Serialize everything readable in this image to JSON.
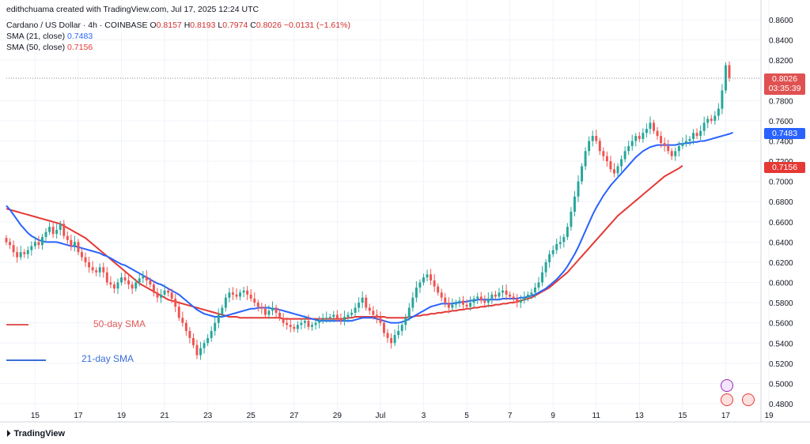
{
  "header": {
    "credit": "edithchuama created with TradingView.com, Jul 17, 2025 12:24 UTC",
    "symbol": "Cardano / US Dollar · 4h · COINBASE",
    "ohlc": {
      "o_label": "O",
      "o": "0.8157",
      "h_label": "H",
      "h": "0.8193",
      "l_label": "L",
      "l": "0.7974",
      "c_label": "C",
      "c": "0.8026",
      "change": "−0.0131 (−1.61%)"
    },
    "sma21": {
      "label": "SMA (21, close)",
      "value": "0.7483"
    },
    "sma50": {
      "label": "SMA (50, close)",
      "value": "0.7156"
    }
  },
  "annotations": {
    "sma50_label": "50-day SMA",
    "sma21_label": "21-day SMA"
  },
  "price_boxes": {
    "last": "0.8026",
    "countdown": "03:35:39",
    "sma21": "0.7483",
    "sma50": "0.7156"
  },
  "footer": {
    "brand": "TradingView"
  },
  "colors": {
    "up": "#26a69a",
    "down": "#ef5350",
    "sma21": "#2962ff",
    "sma50": "#e53935",
    "grid": "#f0f3fa"
  },
  "chart_data": {
    "type": "candlestick",
    "y_axis": {
      "min": 0.48,
      "max": 0.86,
      "ticks": [
        "0.8600",
        "0.8400",
        "0.8200",
        "0.7800",
        "0.7600",
        "0.7400",
        "0.7200",
        "0.7000",
        "0.6800",
        "0.6600",
        "0.6400",
        "0.6200",
        "0.6000",
        "0.5800",
        "0.5600",
        "0.5400",
        "0.5200",
        "0.5000",
        "0.4800"
      ],
      "tick_values": [
        0.86,
        0.84,
        0.82,
        0.78,
        0.76,
        0.74,
        0.72,
        0.7,
        0.68,
        0.66,
        0.64,
        0.62,
        0.6,
        0.58,
        0.56,
        0.54,
        0.52,
        0.5,
        0.48
      ]
    },
    "x_axis": {
      "ticks": [
        "15",
        "17",
        "19",
        "21",
        "23",
        "25",
        "27",
        "29",
        "Jul",
        "3",
        "5",
        "7",
        "9",
        "11",
        "13",
        "15",
        "17",
        "19"
      ],
      "tick_index": [
        8,
        20,
        32,
        44,
        56,
        68,
        80,
        92,
        104,
        116,
        128,
        140,
        152,
        164,
        176,
        188,
        200,
        212
      ]
    },
    "last_price": 0.8026,
    "close": [
      0.64,
      0.637,
      0.63,
      0.625,
      0.63,
      0.628,
      0.632,
      0.636,
      0.64,
      0.637,
      0.645,
      0.65,
      0.655,
      0.648,
      0.652,
      0.658,
      0.646,
      0.642,
      0.636,
      0.64,
      0.63,
      0.625,
      0.62,
      0.615,
      0.612,
      0.61,
      0.615,
      0.61,
      0.6,
      0.598,
      0.594,
      0.6,
      0.605,
      0.602,
      0.598,
      0.594,
      0.6,
      0.604,
      0.606,
      0.602,
      0.598,
      0.59,
      0.585,
      0.588,
      0.592,
      0.59,
      0.584,
      0.576,
      0.565,
      0.56,
      0.552,
      0.545,
      0.538,
      0.528,
      0.535,
      0.54,
      0.545,
      0.552,
      0.56,
      0.568,
      0.575,
      0.585,
      0.59,
      0.588,
      0.586,
      0.59,
      0.592,
      0.588,
      0.584,
      0.58,
      0.576,
      0.574,
      0.568,
      0.572,
      0.575,
      0.57,
      0.565,
      0.56,
      0.558,
      0.556,
      0.554,
      0.558,
      0.56,
      0.562,
      0.556,
      0.558,
      0.56,
      0.562,
      0.564,
      0.565,
      0.566,
      0.568,
      0.564,
      0.562,
      0.566,
      0.568,
      0.57,
      0.575,
      0.58,
      0.585,
      0.575,
      0.572,
      0.568,
      0.565,
      0.56,
      0.55,
      0.545,
      0.54,
      0.548,
      0.552,
      0.558,
      0.565,
      0.575,
      0.585,
      0.595,
      0.6,
      0.605,
      0.608,
      0.602,
      0.596,
      0.59,
      0.585,
      0.58,
      0.575,
      0.578,
      0.58,
      0.582,
      0.578,
      0.576,
      0.58,
      0.584,
      0.586,
      0.582,
      0.58,
      0.584,
      0.588,
      0.586,
      0.59,
      0.592,
      0.588,
      0.586,
      0.584,
      0.58,
      0.582,
      0.585,
      0.588,
      0.59,
      0.595,
      0.6,
      0.61,
      0.62,
      0.628,
      0.632,
      0.638,
      0.64,
      0.645,
      0.655,
      0.67,
      0.685,
      0.7,
      0.715,
      0.73,
      0.74,
      0.745,
      0.74,
      0.73,
      0.725,
      0.72,
      0.712,
      0.708,
      0.715,
      0.722,
      0.73,
      0.735,
      0.74,
      0.745,
      0.742,
      0.748,
      0.752,
      0.758,
      0.75,
      0.745,
      0.738,
      0.735,
      0.73,
      0.725,
      0.73,
      0.735,
      0.738,
      0.74,
      0.742,
      0.748,
      0.745,
      0.75,
      0.758,
      0.762,
      0.76,
      0.765,
      0.772,
      0.79,
      0.815,
      0.8026
    ],
    "sma21": [
      0.676,
      0.672,
      0.667,
      0.662,
      0.657,
      0.653,
      0.649,
      0.646,
      0.644,
      0.642,
      0.641,
      0.64,
      0.64,
      0.64,
      0.64,
      0.639,
      0.638,
      0.637,
      0.636,
      0.636,
      0.635,
      0.634,
      0.633,
      0.632,
      0.631,
      0.63,
      0.629,
      0.627,
      0.626,
      0.624,
      0.622,
      0.62,
      0.618,
      0.617,
      0.615,
      0.613,
      0.611,
      0.609,
      0.607,
      0.605,
      0.603,
      0.601,
      0.599,
      0.598,
      0.596,
      0.594,
      0.592,
      0.59,
      0.588,
      0.585,
      0.582,
      0.579,
      0.576,
      0.573,
      0.571,
      0.569,
      0.568,
      0.567,
      0.566,
      0.566,
      0.566,
      0.567,
      0.568,
      0.569,
      0.57,
      0.571,
      0.572,
      0.573,
      0.574,
      0.574,
      0.575,
      0.575,
      0.575,
      0.575,
      0.574,
      0.574,
      0.573,
      0.572,
      0.571,
      0.57,
      0.569,
      0.568,
      0.567,
      0.566,
      0.565,
      0.564,
      0.563,
      0.562,
      0.562,
      0.562,
      0.562,
      0.562,
      0.562,
      0.562,
      0.562,
      0.562,
      0.562,
      0.563,
      0.564,
      0.565,
      0.565,
      0.565,
      0.565,
      0.564,
      0.563,
      0.562,
      0.561,
      0.56,
      0.56,
      0.56,
      0.561,
      0.562,
      0.564,
      0.566,
      0.568,
      0.57,
      0.572,
      0.574,
      0.576,
      0.577,
      0.578,
      0.579,
      0.579,
      0.579,
      0.579,
      0.58,
      0.58,
      0.581,
      0.581,
      0.582,
      0.582,
      0.583,
      0.583,
      0.583,
      0.583,
      0.583,
      0.583,
      0.583,
      0.584,
      0.584,
      0.584,
      0.584,
      0.584,
      0.585,
      0.585,
      0.586,
      0.587,
      0.588,
      0.59,
      0.592,
      0.594,
      0.597,
      0.6,
      0.603,
      0.607,
      0.611,
      0.616,
      0.622,
      0.628,
      0.635,
      0.643,
      0.651,
      0.659,
      0.667,
      0.674,
      0.68,
      0.686,
      0.691,
      0.696,
      0.7,
      0.704,
      0.708,
      0.712,
      0.716,
      0.72,
      0.724,
      0.727,
      0.73,
      0.732,
      0.734,
      0.735,
      0.736,
      0.736,
      0.736,
      0.736,
      0.736,
      0.736,
      0.737,
      0.737,
      0.738,
      0.738,
      0.739,
      0.739,
      0.74,
      0.74,
      0.741,
      0.742,
      0.743,
      0.744,
      0.745,
      0.746,
      0.747,
      0.7483
    ],
    "sma50": [
      0.673,
      0.672,
      0.671,
      0.67,
      0.669,
      0.668,
      0.667,
      0.666,
      0.665,
      0.664,
      0.663,
      0.662,
      0.661,
      0.66,
      0.659,
      0.658,
      0.656,
      0.654,
      0.652,
      0.65,
      0.648,
      0.646,
      0.644,
      0.641,
      0.638,
      0.635,
      0.632,
      0.629,
      0.626,
      0.623,
      0.62,
      0.617,
      0.614,
      0.611,
      0.608,
      0.605,
      0.602,
      0.599,
      0.597,
      0.595,
      0.593,
      0.591,
      0.589,
      0.587,
      0.585,
      0.583,
      0.582,
      0.581,
      0.58,
      0.579,
      0.578,
      0.577,
      0.576,
      0.575,
      0.574,
      0.573,
      0.572,
      0.571,
      0.57,
      0.569,
      0.568,
      0.567,
      0.566,
      0.566,
      0.566,
      0.565,
      0.565,
      0.565,
      0.565,
      0.565,
      0.565,
      0.565,
      0.565,
      0.565,
      0.565,
      0.565,
      0.565,
      0.564,
      0.564,
      0.564,
      0.564,
      0.564,
      0.564,
      0.564,
      0.564,
      0.564,
      0.564,
      0.564,
      0.564,
      0.564,
      0.564,
      0.564,
      0.564,
      0.564,
      0.564,
      0.565,
      0.565,
      0.566,
      0.566,
      0.566,
      0.566,
      0.566,
      0.566,
      0.566,
      0.566,
      0.566,
      0.565,
      0.565,
      0.565,
      0.565,
      0.565,
      0.565,
      0.566,
      0.566,
      0.567,
      0.567,
      0.568,
      0.568,
      0.569,
      0.569,
      0.57,
      0.57,
      0.571,
      0.571,
      0.572,
      0.572,
      0.573,
      0.573,
      0.574,
      0.574,
      0.575,
      0.575,
      0.576,
      0.576,
      0.577,
      0.577,
      0.578,
      0.578,
      0.579,
      0.579,
      0.58,
      0.58,
      0.581,
      0.582,
      0.583,
      0.584,
      0.585,
      0.587,
      0.589,
      0.591,
      0.593,
      0.595,
      0.598,
      0.601,
      0.604,
      0.607,
      0.61,
      0.614,
      0.618,
      0.622,
      0.626,
      0.63,
      0.634,
      0.638,
      0.642,
      0.646,
      0.65,
      0.654,
      0.658,
      0.662,
      0.666,
      0.669,
      0.672,
      0.675,
      0.678,
      0.681,
      0.684,
      0.687,
      0.69,
      0.693,
      0.696,
      0.699,
      0.702,
      0.705,
      0.707,
      0.709,
      0.711,
      0.713,
      0.7156
    ]
  }
}
